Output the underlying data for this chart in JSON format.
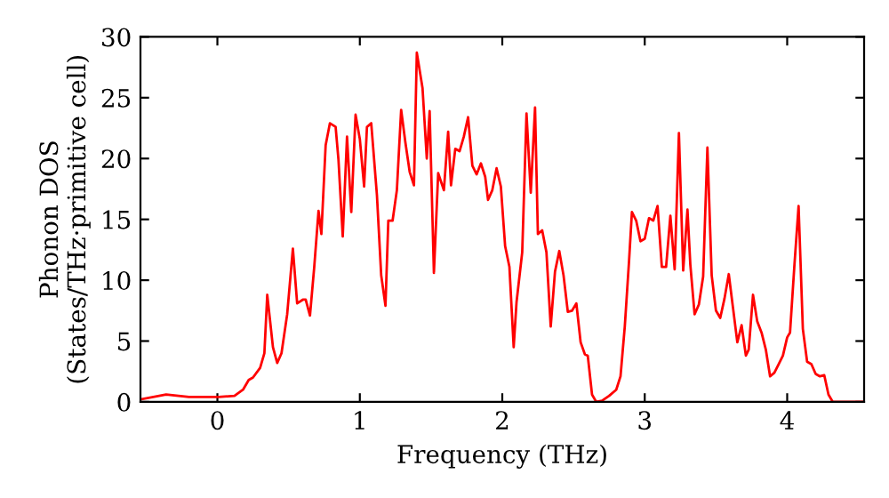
{
  "chart_data": {
    "type": "line",
    "xlabel": "Frequency (THz)",
    "ylabel": "Phonon DOS\n(States/THz·primitive cell)",
    "xlim": [
      -0.54,
      4.54
    ],
    "ylim": [
      0,
      30
    ],
    "xticks": [
      0,
      1,
      2,
      3,
      4
    ],
    "yticks": [
      0,
      5,
      10,
      15,
      20,
      25,
      30
    ],
    "grid": false,
    "marker": "none",
    "line_style": "solid",
    "series": [
      {
        "color": "#ff0000",
        "x": [
          -0.54,
          -0.36,
          -0.2,
          0.01,
          0.12,
          0.18,
          0.22,
          0.25,
          0.3,
          0.33,
          0.35,
          0.39,
          0.42,
          0.45,
          0.49,
          0.53,
          0.56,
          0.6,
          0.62,
          0.65,
          0.68,
          0.71,
          0.73,
          0.76,
          0.79,
          0.83,
          0.85,
          0.88,
          0.91,
          0.94,
          0.97,
          1.0,
          1.03,
          1.05,
          1.08,
          1.12,
          1.15,
          1.18,
          1.2,
          1.23,
          1.26,
          1.29,
          1.32,
          1.35,
          1.38,
          1.4,
          1.44,
          1.47,
          1.49,
          1.52,
          1.55,
          1.59,
          1.62,
          1.64,
          1.67,
          1.7,
          1.73,
          1.76,
          1.79,
          1.82,
          1.85,
          1.88,
          1.9,
          1.93,
          1.96,
          1.99,
          2.02,
          2.05,
          2.08,
          2.1,
          2.14,
          2.17,
          2.2,
          2.23,
          2.25,
          2.28,
          2.31,
          2.34,
          2.37,
          2.4,
          2.43,
          2.46,
          2.49,
          2.52,
          2.55,
          2.58,
          2.6,
          2.63,
          2.66,
          2.7,
          2.75,
          2.8,
          2.83,
          2.86,
          2.89,
          2.91,
          2.94,
          2.97,
          3.0,
          3.03,
          3.06,
          3.09,
          3.12,
          3.15,
          3.18,
          3.21,
          3.24,
          3.27,
          3.3,
          3.32,
          3.35,
          3.38,
          3.41,
          3.44,
          3.47,
          3.5,
          3.53,
          3.56,
          3.59,
          3.62,
          3.65,
          3.68,
          3.71,
          3.73,
          3.76,
          3.79,
          3.82,
          3.85,
          3.88,
          3.91,
          3.94,
          3.97,
          4.0,
          4.02,
          4.05,
          4.08,
          4.11,
          4.14,
          4.17,
          4.2,
          4.23,
          4.26,
          4.29,
          4.32,
          4.54
        ],
        "values": [
          0.2,
          0.6,
          0.4,
          0.4,
          0.5,
          1.0,
          1.8,
          2.0,
          2.8,
          4.0,
          8.8,
          4.5,
          3.2,
          4.0,
          7.2,
          12.6,
          8.1,
          8.4,
          8.4,
          7.1,
          11.1,
          15.7,
          13.8,
          21.1,
          22.9,
          22.6,
          19.9,
          13.6,
          21.8,
          15.6,
          23.6,
          21.6,
          17.7,
          22.6,
          22.9,
          17.0,
          10.4,
          7.9,
          14.9,
          14.9,
          17.4,
          24.0,
          21.3,
          18.9,
          17.8,
          28.7,
          25.8,
          20.0,
          23.9,
          10.6,
          18.8,
          17.4,
          22.2,
          17.8,
          20.8,
          20.6,
          21.8,
          23.4,
          19.4,
          18.7,
          19.6,
          18.5,
          16.6,
          17.4,
          19.2,
          17.7,
          12.8,
          11.1,
          4.5,
          8.2,
          12.3,
          23.7,
          17.2,
          24.2,
          13.8,
          14.1,
          12.3,
          6.2,
          10.7,
          12.4,
          10.4,
          7.4,
          7.5,
          8.1,
          4.9,
          3.9,
          3.8,
          0.6,
          0,
          0.1,
          0.5,
          1.0,
          2.1,
          6.2,
          11.6,
          15.6,
          14.9,
          13.2,
          13.4,
          15.1,
          14.9,
          16.1,
          11.1,
          11.1,
          15.3,
          10.9,
          22.1,
          10.8,
          15.8,
          11.3,
          7.2,
          8.0,
          10.3,
          20.9,
          10.4,
          7.5,
          6.9,
          8.5,
          10.5,
          7.7,
          4.9,
          6.3,
          3.8,
          4.3,
          8.8,
          6.6,
          5.7,
          4.3,
          2.1,
          2.4,
          3.1,
          3.8,
          5.3,
          5.7,
          11.1,
          16.1,
          6.0,
          3.3,
          3.1,
          2.3,
          2.1,
          2.2,
          0.6,
          0,
          0
        ]
      }
    ]
  }
}
